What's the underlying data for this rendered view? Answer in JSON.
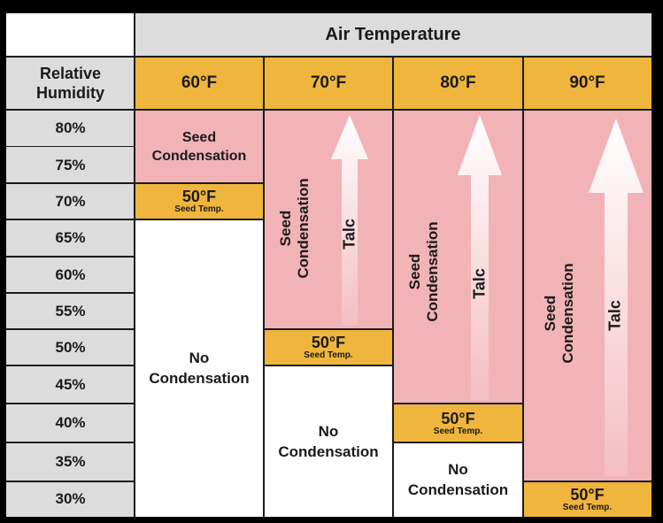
{
  "header": {
    "air_temperature": "Air Temperature",
    "relative_humidity": "Relative\nHumidity"
  },
  "temperatures": [
    "60°F",
    "70°F",
    "80°F",
    "90°F"
  ],
  "humidity_levels": [
    "80%",
    "75%",
    "70%",
    "65%",
    "60%",
    "55%",
    "50%",
    "45%",
    "40%",
    "35%",
    "30%"
  ],
  "zones": {
    "col_60": {
      "seed_condensation": "Seed\nCondensation",
      "seed_temp_value": "50°F",
      "seed_temp_label": "Seed Temp.",
      "no_condensation": "No\nCondensation"
    },
    "col_70": {
      "seed_condensation": "Seed\nCondensation",
      "talc": "Talc",
      "seed_temp_value": "50°F",
      "seed_temp_label": "Seed Temp.",
      "no_condensation": "No\nCondensation"
    },
    "col_80": {
      "seed_condensation": "Seed\nCondensation",
      "talc": "Talc",
      "seed_temp_value": "50°F",
      "seed_temp_label": "Seed Temp.",
      "no_condensation": "No\nCondensation"
    },
    "col_90": {
      "seed_condensation": "Seed\nCondensation",
      "talc": "Talc",
      "seed_temp_value": "50°F",
      "seed_temp_label": "Seed Temp."
    }
  },
  "colors": {
    "condensation": "#f2b3b7",
    "seed_temp": "#efb53d",
    "no_condensation": "#ffffff",
    "label_bg": "#dcdcdc"
  }
}
